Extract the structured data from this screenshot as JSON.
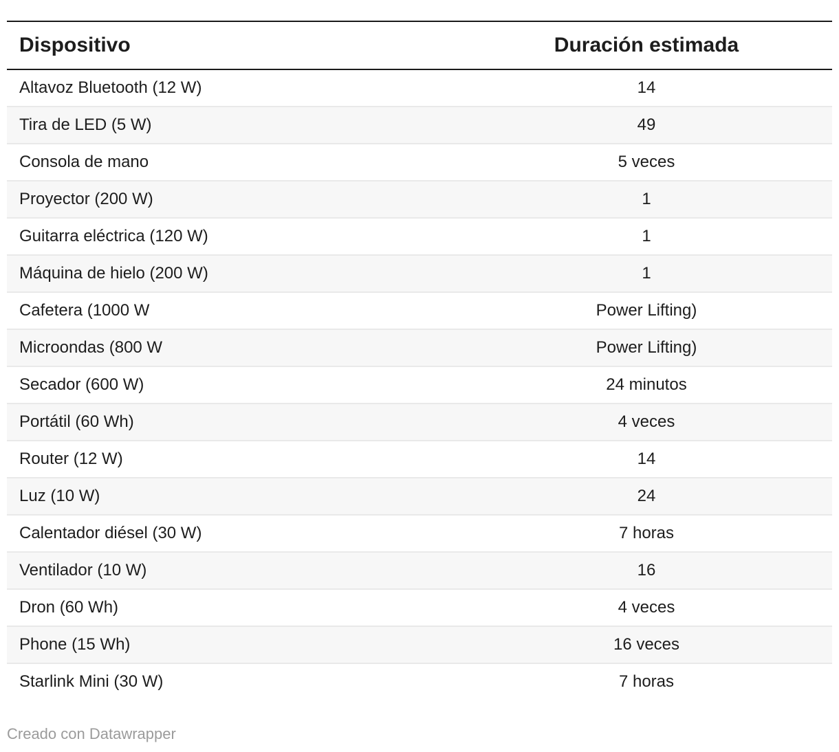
{
  "chart_data": {
    "type": "table",
    "columns": [
      "Dispositivo",
      "Duración estimada"
    ],
    "column_align": [
      "left",
      "center"
    ],
    "rows": [
      [
        "Altavoz Bluetooth (12 W)",
        "14"
      ],
      [
        "Tira de LED (5 W)",
        "49"
      ],
      [
        "Consola de mano",
        "5 veces"
      ],
      [
        "Proyector (200 W)",
        "1"
      ],
      [
        "Guitarra eléctrica (120 W)",
        "1"
      ],
      [
        "Máquina de hielo (200 W)",
        "1"
      ],
      [
        "Cafetera (1000 W",
        "Power Lifting)"
      ],
      [
        "Microondas (800 W",
        "Power Lifting)"
      ],
      [
        "Secador (600 W)",
        "24 minutos"
      ],
      [
        "Portátil (60 Wh)",
        "4 veces"
      ],
      [
        "Router (12 W)",
        "14"
      ],
      [
        "Luz (10 W)",
        "24"
      ],
      [
        "Calentador diésel (30 W)",
        "7 horas"
      ],
      [
        "Ventilador (10 W)",
        "16"
      ],
      [
        "Dron (60 Wh)",
        "4 veces"
      ],
      [
        "Phone (15 Wh)",
        "16 veces"
      ],
      [
        "Starlink Mini (30 W)",
        "7 horas"
      ]
    ],
    "title": "",
    "grid": "horizontal-rules",
    "stripe_rows": "even"
  },
  "footer": {
    "credit": "Creado con Datawrapper"
  },
  "colors": {
    "text": "#1d1d1d",
    "border-dark": "#1a1a1a",
    "stripe": "#f7f7f7",
    "separator": "#e9e9e9",
    "footer-text": "#9b9b9b",
    "page-bg": "#ffffff"
  }
}
